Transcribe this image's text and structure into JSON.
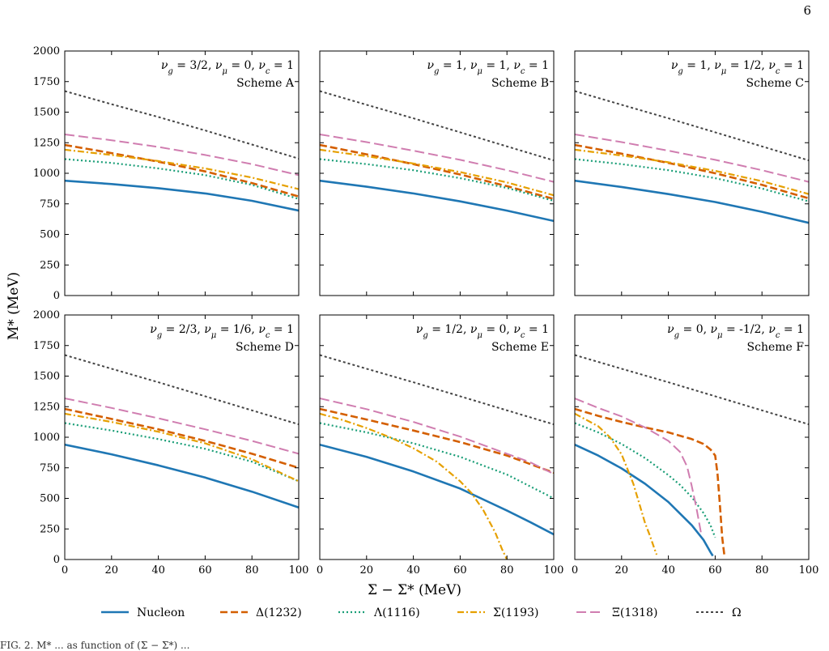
{
  "page_number": "6",
  "x_axis_label": "Σ − Σ* (MeV)",
  "y_axis_label": "M* (MeV)",
  "caption_fragment": "FIG. 2. M* ... as function of (Σ − Σ*) ...",
  "legend": [
    {
      "key": "N",
      "label": "Nucleon"
    },
    {
      "key": "D",
      "label": "Δ(1232)"
    },
    {
      "key": "L",
      "label": "Λ(1116)"
    },
    {
      "key": "S",
      "label": "Σ(1193)"
    },
    {
      "key": "X",
      "label": "Ξ(1318)"
    },
    {
      "key": "O",
      "label": "Ω"
    }
  ],
  "series_styles": {
    "N": {
      "color": "#1f77b4",
      "dash": "",
      "width": 2.6
    },
    "D": {
      "color": "#d45f00",
      "dash": "9,4",
      "width": 2.6
    },
    "L": {
      "color": "#1a9e77",
      "dash": "2,3",
      "width": 2.2
    },
    "S": {
      "color": "#e6a000",
      "dash": "8,3,2,3",
      "width": 2.2
    },
    "X": {
      "color": "#d07db0",
      "dash": "12,5",
      "width": 2.0
    },
    "O": {
      "color": "#444444",
      "dash": "3,3",
      "width": 2.0
    }
  },
  "chart_data": [
    {
      "type": "line",
      "panel": "A",
      "params_text": "ν_g = 3/2,  ν_μ = 0,  ν_c = 1",
      "scheme_text": "Scheme A",
      "xlim": [
        0,
        100
      ],
      "ylim": [
        0,
        2000
      ],
      "xticks": [
        0,
        20,
        40,
        60,
        80,
        100
      ],
      "yticks": [
        0,
        250,
        500,
        750,
        1000,
        1250,
        1500,
        1750,
        2000
      ],
      "series": [
        {
          "key": "N",
          "x": [
            0,
            20,
            40,
            60,
            80,
            100
          ],
          "y": [
            939,
            912,
            878,
            835,
            775,
            695
          ]
        },
        {
          "key": "D",
          "x": [
            0,
            20,
            40,
            60,
            80,
            100
          ],
          "y": [
            1232,
            1165,
            1095,
            1015,
            920,
            810
          ]
        },
        {
          "key": "L",
          "x": [
            0,
            20,
            40,
            60,
            80,
            100
          ],
          "y": [
            1116,
            1085,
            1040,
            985,
            905,
            790
          ]
        },
        {
          "key": "S",
          "x": [
            0,
            20,
            40,
            60,
            80,
            100
          ],
          "y": [
            1193,
            1150,
            1100,
            1040,
            965,
            870
          ]
        },
        {
          "key": "X",
          "x": [
            0,
            20,
            40,
            60,
            80,
            100
          ],
          "y": [
            1318,
            1270,
            1215,
            1150,
            1075,
            985
          ]
        },
        {
          "key": "O",
          "x": [
            0,
            20,
            40,
            60,
            80,
            100
          ],
          "y": [
            1672,
            1565,
            1460,
            1350,
            1235,
            1120
          ]
        }
      ]
    },
    {
      "type": "line",
      "panel": "B",
      "params_text": "ν_g = 1,  ν_μ = 1,  ν_c = 1",
      "scheme_text": "Scheme B",
      "xlim": [
        0,
        100
      ],
      "ylim": [
        0,
        2000
      ],
      "xticks": [
        0,
        20,
        40,
        60,
        80,
        100
      ],
      "yticks": [
        0,
        250,
        500,
        750,
        1000,
        1250,
        1500,
        1750,
        2000
      ],
      "series": [
        {
          "key": "N",
          "x": [
            0,
            20,
            40,
            60,
            80,
            100
          ],
          "y": [
            939,
            890,
            835,
            770,
            695,
            610
          ]
        },
        {
          "key": "D",
          "x": [
            0,
            20,
            40,
            60,
            80,
            100
          ],
          "y": [
            1232,
            1155,
            1075,
            990,
            895,
            790
          ]
        },
        {
          "key": "L",
          "x": [
            0,
            20,
            40,
            60,
            80,
            100
          ],
          "y": [
            1116,
            1075,
            1025,
            960,
            880,
            775
          ]
        },
        {
          "key": "S",
          "x": [
            0,
            20,
            40,
            60,
            80,
            100
          ],
          "y": [
            1193,
            1140,
            1080,
            1010,
            925,
            820
          ]
        },
        {
          "key": "X",
          "x": [
            0,
            20,
            40,
            60,
            80,
            100
          ],
          "y": [
            1318,
            1255,
            1185,
            1110,
            1025,
            930
          ]
        },
        {
          "key": "O",
          "x": [
            0,
            20,
            40,
            60,
            80,
            100
          ],
          "y": [
            1672,
            1560,
            1450,
            1335,
            1220,
            1105
          ]
        }
      ]
    },
    {
      "type": "line",
      "panel": "C",
      "params_text": "ν_g = 1,  ν_μ = 1/2,  ν_c = 1",
      "scheme_text": "Scheme C",
      "xlim": [
        0,
        100
      ],
      "ylim": [
        0,
        2000
      ],
      "xticks": [
        0,
        20,
        40,
        60,
        80,
        100
      ],
      "yticks": [
        0,
        250,
        500,
        750,
        1000,
        1250,
        1500,
        1750,
        2000
      ],
      "series": [
        {
          "key": "N",
          "x": [
            0,
            20,
            40,
            60,
            80,
            100
          ],
          "y": [
            939,
            888,
            830,
            765,
            685,
            595
          ]
        },
        {
          "key": "D",
          "x": [
            0,
            20,
            40,
            60,
            80,
            100
          ],
          "y": [
            1232,
            1160,
            1085,
            1000,
            905,
            795
          ]
        },
        {
          "key": "L",
          "x": [
            0,
            20,
            40,
            60,
            80,
            100
          ],
          "y": [
            1116,
            1075,
            1025,
            960,
            875,
            770
          ]
        },
        {
          "key": "S",
          "x": [
            0,
            20,
            40,
            60,
            80,
            100
          ],
          "y": [
            1193,
            1145,
            1090,
            1020,
            935,
            830
          ]
        },
        {
          "key": "X",
          "x": [
            0,
            20,
            40,
            60,
            80,
            100
          ],
          "y": [
            1318,
            1255,
            1185,
            1110,
            1025,
            930
          ]
        },
        {
          "key": "O",
          "x": [
            0,
            20,
            40,
            60,
            80,
            100
          ],
          "y": [
            1672,
            1560,
            1450,
            1335,
            1220,
            1105
          ]
        }
      ]
    },
    {
      "type": "line",
      "panel": "D",
      "params_text": "ν_g = 2/3,  ν_μ = 1/6,  ν_c = 1",
      "scheme_text": "Scheme D",
      "xlim": [
        0,
        100
      ],
      "ylim": [
        0,
        2000
      ],
      "xticks": [
        0,
        20,
        40,
        60,
        80,
        100
      ],
      "yticks": [
        0,
        250,
        500,
        750,
        1000,
        1250,
        1500,
        1750,
        2000
      ],
      "series": [
        {
          "key": "N",
          "x": [
            0,
            20,
            40,
            60,
            80,
            100
          ],
          "y": [
            939,
            860,
            770,
            670,
            555,
            425
          ]
        },
        {
          "key": "D",
          "x": [
            0,
            20,
            40,
            60,
            80,
            100
          ],
          "y": [
            1232,
            1150,
            1065,
            970,
            865,
            750
          ]
        },
        {
          "key": "L",
          "x": [
            0,
            20,
            40,
            60,
            80,
            100
          ],
          "y": [
            1116,
            1055,
            985,
            905,
            800,
            640
          ]
        },
        {
          "key": "S",
          "x": [
            0,
            20,
            40,
            60,
            80,
            100
          ],
          "y": [
            1193,
            1125,
            1045,
            950,
            820,
            640
          ]
        },
        {
          "key": "X",
          "x": [
            0,
            20,
            40,
            60,
            80,
            100
          ],
          "y": [
            1318,
            1240,
            1155,
            1065,
            970,
            865
          ]
        },
        {
          "key": "O",
          "x": [
            0,
            20,
            40,
            60,
            80,
            100
          ],
          "y": [
            1672,
            1560,
            1450,
            1335,
            1220,
            1105
          ]
        }
      ]
    },
    {
      "type": "line",
      "panel": "E",
      "params_text": "ν_g = 1/2,  ν_μ = 0,  ν_c = 1",
      "scheme_text": "Scheme E",
      "xlim": [
        0,
        100
      ],
      "ylim": [
        0,
        2000
      ],
      "xticks": [
        0,
        20,
        40,
        60,
        80,
        100
      ],
      "yticks": [
        0,
        250,
        500,
        750,
        1000,
        1250,
        1500,
        1750,
        2000
      ],
      "series": [
        {
          "key": "N",
          "x": [
            0,
            20,
            40,
            60,
            70,
            80,
            90,
            100
          ],
          "y": [
            939,
            840,
            720,
            580,
            490,
            400,
            305,
            205
          ]
        },
        {
          "key": "D",
          "x": [
            0,
            20,
            40,
            60,
            80,
            100
          ],
          "y": [
            1232,
            1145,
            1055,
            960,
            850,
            710
          ]
        },
        {
          "key": "L",
          "x": [
            0,
            20,
            40,
            60,
            80,
            100
          ],
          "y": [
            1116,
            1040,
            950,
            840,
            695,
            500
          ]
        },
        {
          "key": "S",
          "x": [
            0,
            10,
            20,
            30,
            40,
            50,
            60,
            65,
            70,
            75,
            78,
            80
          ],
          "y": [
            1193,
            1140,
            1075,
            1000,
            910,
            800,
            640,
            540,
            400,
            220,
            80,
            0
          ]
        },
        {
          "key": "X",
          "x": [
            0,
            20,
            40,
            60,
            80,
            90,
            100
          ],
          "y": [
            1318,
            1230,
            1125,
            1005,
            865,
            795,
            700
          ]
        },
        {
          "key": "O",
          "x": [
            0,
            20,
            40,
            60,
            80,
            100
          ],
          "y": [
            1672,
            1560,
            1450,
            1335,
            1220,
            1105
          ]
        }
      ]
    },
    {
      "type": "line",
      "panel": "F",
      "params_text": "ν_g = 0,  ν_μ = -1/2,  ν_c = 1",
      "scheme_text": "Scheme F",
      "xlim": [
        0,
        100
      ],
      "ylim": [
        0,
        2000
      ],
      "xticks": [
        0,
        20,
        40,
        60,
        80,
        100
      ],
      "yticks": [
        0,
        250,
        500,
        750,
        1000,
        1250,
        1500,
        1750,
        2000
      ],
      "series": [
        {
          "key": "N",
          "x": [
            0,
            10,
            20,
            30,
            40,
            50,
            55,
            58,
            59
          ],
          "y": [
            939,
            850,
            745,
            620,
            470,
            280,
            160,
            60,
            30
          ]
        },
        {
          "key": "D",
          "x": [
            0,
            10,
            20,
            30,
            40,
            50,
            55,
            58,
            60,
            61,
            62,
            63,
            64
          ],
          "y": [
            1232,
            1175,
            1125,
            1080,
            1040,
            985,
            945,
            900,
            850,
            700,
            450,
            180,
            20
          ]
        },
        {
          "key": "L",
          "x": [
            0,
            10,
            20,
            30,
            40,
            45,
            50,
            55,
            58,
            60
          ],
          "y": [
            1116,
            1040,
            945,
            830,
            690,
            610,
            510,
            380,
            280,
            180
          ]
        },
        {
          "key": "S",
          "x": [
            0,
            10,
            15,
            20,
            25,
            28,
            30,
            32,
            34,
            35
          ],
          "y": [
            1193,
            1090,
            1000,
            860,
            620,
            430,
            300,
            200,
            90,
            40
          ]
        },
        {
          "key": "X",
          "x": [
            0,
            10,
            20,
            30,
            40,
            45,
            48,
            50,
            52,
            54
          ],
          "y": [
            1318,
            1240,
            1170,
            1080,
            970,
            880,
            760,
            600,
            420,
            210
          ]
        },
        {
          "key": "O",
          "x": [
            0,
            20,
            40,
            60,
            80,
            100
          ],
          "y": [
            1672,
            1560,
            1450,
            1335,
            1220,
            1105
          ]
        }
      ]
    }
  ]
}
